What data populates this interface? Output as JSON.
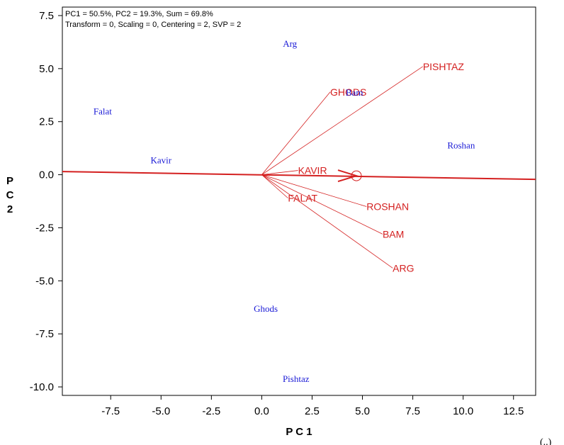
{
  "chart_data": {
    "type": "scatter",
    "subtype": "gge-biplot",
    "title": "",
    "header_lines": [
      "PC1 = 50.5%, PC2 = 19.3%, Sum = 69.8%",
      "Transform = 0, Scaling = 0, Centering = 2, SVP = 2"
    ],
    "xlabel": "P C 1",
    "ylabel": "P\nC\n2",
    "xlim": [
      -9.9,
      13.6
    ],
    "ylim": [
      -10.4,
      7.9
    ],
    "xticks": [
      -7.5,
      -5.0,
      -2.5,
      0.0,
      2.5,
      5.0,
      7.5,
      10.0,
      12.5
    ],
    "yticks": [
      -10.0,
      -7.5,
      -5.0,
      -2.5,
      0.0,
      2.5,
      5.0,
      7.5
    ],
    "xtick_labels": [
      "-7.5",
      "-5.0",
      "-2.5",
      "0.0",
      "2.5",
      "5.0",
      "7.5",
      "10.0",
      "12.5"
    ],
    "ytick_labels": [
      "-10.0",
      "-7.5",
      "-5.0",
      "-2.5",
      "0.0",
      "2.5",
      "5.0",
      "7.5"
    ],
    "grid": false,
    "colors": {
      "genotype": "#1a1ad6",
      "environment": "#d42020",
      "axis": "#000000"
    },
    "genotypes": [
      {
        "name": "Arg",
        "x": 1.4,
        "y": 6.2
      },
      {
        "name": "Bam",
        "x": 4.6,
        "y": 3.9
      },
      {
        "name": "Falat",
        "x": -7.9,
        "y": 3.0
      },
      {
        "name": "Kavir",
        "x": -5.0,
        "y": 0.7
      },
      {
        "name": "Roshan",
        "x": 9.9,
        "y": 1.4
      },
      {
        "name": "Ghods",
        "x": 0.2,
        "y": -6.3
      },
      {
        "name": "Pishtaz",
        "x": 1.7,
        "y": -9.6
      }
    ],
    "environments": [
      {
        "name": "PISHTAZ",
        "x": 8.0,
        "y": 5.1
      },
      {
        "name": "GHODS",
        "x": 3.4,
        "y": 3.9
      },
      {
        "name": "KAVIR",
        "x": 1.8,
        "y": 0.2
      },
      {
        "name": "FALAT",
        "x": 1.3,
        "y": -1.1
      },
      {
        "name": "ROSHAN",
        "x": 5.2,
        "y": -1.5
      },
      {
        "name": "BAM",
        "x": 6.0,
        "y": -2.8
      },
      {
        "name": "ARG",
        "x": 6.5,
        "y": -4.4
      }
    ],
    "average_environment_axis": {
      "line_x": [
        -9.9,
        13.6
      ],
      "line_y": [
        0.15,
        -0.22
      ],
      "arrow_at": [
        4.7,
        -0.05
      ]
    },
    "corner_note": "(..)"
  }
}
